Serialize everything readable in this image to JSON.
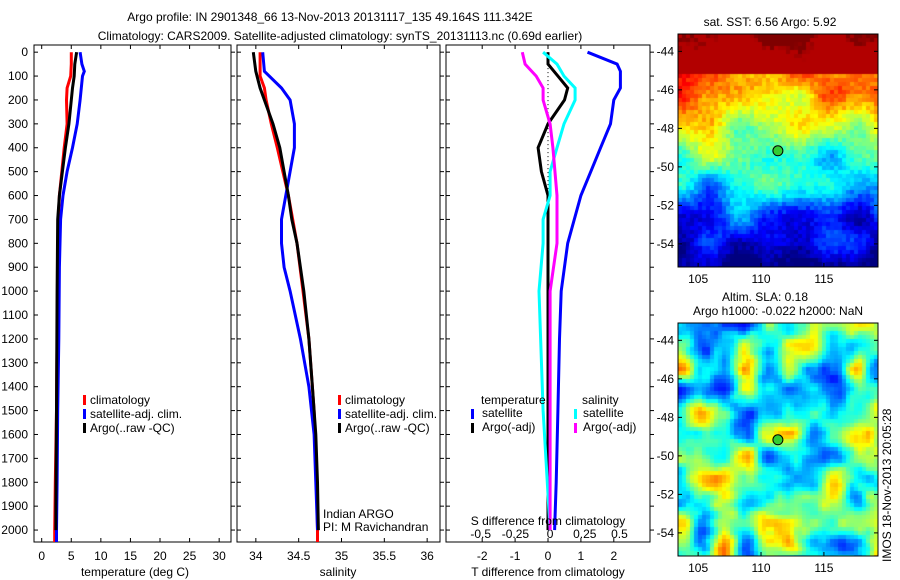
{
  "title_line1": "Argo profile: IN 2901348_66 13-Nov-2013 20131117_135 49.164S 111.342E",
  "title_line2": "Climatology: CARS2009. Satellite-adjusted climatology: synTS_20131113.nc (0.69d earlier)",
  "watermark": "IMOS 18-Nov-2013 20:05:28",
  "colors": {
    "clim": "#ff0000",
    "sat": "#0000ff",
    "argo": "#000000",
    "s_sat": "#00ffff",
    "s_argo": "#ff00ff"
  },
  "chart_data": [
    {
      "type": "line",
      "xlabel": "temperature (deg C)",
      "ylabel": "",
      "xlim": [
        -1.3,
        32
      ],
      "ylim": [
        2050,
        -30
      ],
      "xticks": [
        0,
        5,
        10,
        15,
        20,
        25,
        30
      ],
      "yticks": [
        0,
        100,
        200,
        300,
        400,
        500,
        600,
        700,
        800,
        900,
        1000,
        1100,
        1200,
        1300,
        1400,
        1500,
        1600,
        1700,
        1800,
        1900,
        2000
      ],
      "legend": [
        "climatology",
        "satellite-adj. clim.",
        "Argo(..raw -QC)"
      ],
      "series": [
        {
          "name": "climatology",
          "color": "clim",
          "points": [
            [
              0,
              5.0
            ],
            [
              50,
              5.0
            ],
            [
              100,
              4.9
            ],
            [
              150,
              4.3
            ],
            [
              200,
              4.2
            ],
            [
              300,
              4.3
            ],
            [
              400,
              3.8
            ],
            [
              500,
              3.4
            ],
            [
              600,
              3.0
            ],
            [
              700,
              2.8
            ],
            [
              900,
              2.7
            ],
            [
              1200,
              2.6
            ],
            [
              1500,
              2.5
            ],
            [
              1800,
              2.3
            ],
            [
              2000,
              2.2
            ],
            [
              2050,
              2.2
            ]
          ]
        },
        {
          "name": "satellite-adj. clim.",
          "color": "sat",
          "points": [
            [
              0,
              6.5
            ],
            [
              50,
              6.8
            ],
            [
              80,
              7.2
            ],
            [
              100,
              6.9
            ],
            [
              150,
              6.7
            ],
            [
              200,
              6.5
            ],
            [
              300,
              6.0
            ],
            [
              400,
              5.2
            ],
            [
              500,
              4.3
            ],
            [
              600,
              3.6
            ],
            [
              700,
              3.2
            ],
            [
              900,
              3.0
            ],
            [
              1200,
              2.9
            ],
            [
              1500,
              2.7
            ],
            [
              1800,
              2.6
            ],
            [
              2000,
              2.5
            ],
            [
              2050,
              2.5
            ]
          ]
        },
        {
          "name": "Argo(..raw -QC)",
          "color": "argo",
          "points": [
            [
              0,
              5.9
            ],
            [
              50,
              5.6
            ],
            [
              100,
              5.5
            ],
            [
              150,
              5.2
            ],
            [
              200,
              5.0
            ],
            [
              300,
              4.6
            ],
            [
              400,
              4.0
            ],
            [
              500,
              3.5
            ],
            [
              600,
              3.0
            ],
            [
              700,
              2.7
            ],
            [
              1000,
              2.6
            ],
            [
              1500,
              2.5
            ],
            [
              1900,
              2.4
            ],
            [
              2000,
              2.4
            ]
          ]
        }
      ]
    },
    {
      "type": "line",
      "xlabel": "salinity",
      "xlim": [
        33.78,
        36.15
      ],
      "ylim": [
        2050,
        -30
      ],
      "xticks": [
        34,
        34.5,
        35,
        35.5,
        36
      ],
      "legend": [
        "climatology",
        "satellite-adj. clim.",
        "Argo(..raw -QC)"
      ],
      "annotation": [
        "Indian ARGO",
        "PI: M Ravichandran"
      ],
      "series": [
        {
          "name": "climatology",
          "color": "clim",
          "points": [
            [
              0,
              34.05
            ],
            [
              100,
              34.05
            ],
            [
              150,
              34.1
            ],
            [
              200,
              34.12
            ],
            [
              300,
              34.18
            ],
            [
              400,
              34.25
            ],
            [
              600,
              34.38
            ],
            [
              800,
              34.48
            ],
            [
              1000,
              34.55
            ],
            [
              1200,
              34.62
            ],
            [
              1500,
              34.68
            ],
            [
              1800,
              34.71
            ],
            [
              2000,
              34.72
            ],
            [
              2050,
              34.72
            ]
          ]
        },
        {
          "name": "satellite-adj. clim.",
          "color": "sat",
          "points": [
            [
              0,
              34.08
            ],
            [
              80,
              34.1
            ],
            [
              150,
              34.3
            ],
            [
              200,
              34.4
            ],
            [
              300,
              34.45
            ],
            [
              400,
              34.45
            ],
            [
              500,
              34.4
            ],
            [
              600,
              34.35
            ],
            [
              700,
              34.3
            ],
            [
              800,
              34.3
            ],
            [
              900,
              34.33
            ],
            [
              1000,
              34.4
            ],
            [
              1200,
              34.52
            ],
            [
              1400,
              34.62
            ],
            [
              1600,
              34.68
            ],
            [
              1800,
              34.7
            ],
            [
              2000,
              34.72
            ]
          ]
        },
        {
          "name": "Argo(..raw -QC)",
          "color": "argo",
          "points": [
            [
              0,
              33.97
            ],
            [
              80,
              34.0
            ],
            [
              150,
              34.05
            ],
            [
              200,
              34.1
            ],
            [
              300,
              34.2
            ],
            [
              400,
              34.28
            ],
            [
              500,
              34.33
            ],
            [
              600,
              34.38
            ],
            [
              700,
              34.42
            ],
            [
              800,
              34.48
            ],
            [
              900,
              34.52
            ],
            [
              1000,
              34.56
            ],
            [
              1200,
              34.62
            ],
            [
              1400,
              34.66
            ],
            [
              1600,
              34.7
            ],
            [
              1800,
              34.72
            ],
            [
              2000,
              34.73
            ]
          ]
        }
      ]
    },
    {
      "type": "line",
      "xlabel": "T difference from climatology",
      "xlabel2": "S difference from climatology",
      "xlim": [
        -3.1,
        3.1
      ],
      "xlim_S": [
        -0.75,
        0.72
      ],
      "ylim": [
        2050,
        -30
      ],
      "xticks": [
        -2,
        -1,
        0,
        1,
        2
      ],
      "xticks_S": [
        -0.5,
        -0.25,
        0,
        0.25,
        0.5
      ],
      "xticklabels_S": [
        "-0.5",
        "-0.25",
        "0",
        "0.25",
        "0.5"
      ],
      "legend_T_title": "temperature",
      "legend_S_title": "salinity",
      "legend_T": [
        "satellite",
        "Argo(-adj)"
      ],
      "legend_S": [
        "satellite",
        "Argo(-adj)"
      ],
      "series": [
        {
          "name": "T satellite",
          "color": "sat",
          "scale": "T",
          "points": [
            [
              0,
              1.2
            ],
            [
              50,
              2.1
            ],
            [
              80,
              2.2
            ],
            [
              150,
              2.2
            ],
            [
              200,
              2.0
            ],
            [
              300,
              1.9
            ],
            [
              400,
              1.6
            ],
            [
              500,
              1.3
            ],
            [
              600,
              1.0
            ],
            [
              700,
              0.8
            ],
            [
              800,
              0.6
            ],
            [
              1000,
              0.4
            ],
            [
              1200,
              0.35
            ],
            [
              1500,
              0.3
            ],
            [
              1800,
              0.25
            ],
            [
              2000,
              0.2
            ]
          ]
        },
        {
          "name": "T Argo(-adj)",
          "color": "argo",
          "scale": "T",
          "points": [
            [
              0,
              0.0
            ],
            [
              50,
              0.0
            ],
            [
              100,
              0.3
            ],
            [
              150,
              0.6
            ],
            [
              200,
              0.5
            ],
            [
              300,
              0.0
            ],
            [
              400,
              -0.3
            ],
            [
              500,
              -0.2
            ],
            [
              600,
              0.0
            ],
            [
              700,
              0.0
            ],
            [
              1000,
              0.0
            ],
            [
              2000,
              0.0
            ]
          ]
        },
        {
          "name": "S satellite",
          "color": "s_sat",
          "scale": "S",
          "points": [
            [
              0,
              -0.05
            ],
            [
              50,
              0.05
            ],
            [
              100,
              0.1
            ],
            [
              150,
              0.18
            ],
            [
              200,
              0.18
            ],
            [
              300,
              0.1
            ],
            [
              400,
              0.05
            ],
            [
              500,
              0.0
            ],
            [
              600,
              0.0
            ],
            [
              700,
              -0.05
            ],
            [
              800,
              -0.05
            ],
            [
              1000,
              -0.08
            ],
            [
              1500,
              -0.05
            ],
            [
              2000,
              0.0
            ]
          ]
        },
        {
          "name": "S Argo(-adj)",
          "color": "s_argo",
          "scale": "S",
          "points": [
            [
              0,
              -0.2
            ],
            [
              50,
              -0.18
            ],
            [
              100,
              -0.1
            ],
            [
              150,
              -0.05
            ],
            [
              200,
              -0.05
            ],
            [
              300,
              0.0
            ],
            [
              400,
              0.02
            ],
            [
              600,
              0.05
            ],
            [
              800,
              0.05
            ],
            [
              1000,
              0.0
            ],
            [
              1500,
              0.0
            ],
            [
              2000,
              0.0
            ]
          ]
        }
      ]
    },
    {
      "type": "heatmap",
      "title": "sat. SST: 6.56 Argo: 5.92",
      "xlim": [
        103.4,
        119.3
      ],
      "ylim": [
        -55.2,
        -43.1
      ],
      "xticks": [
        105,
        110,
        115
      ],
      "yticks": [
        -44,
        -46,
        -48,
        -50,
        -52,
        -54
      ],
      "marker": {
        "lon": 111.342,
        "lat": -49.164
      }
    },
    {
      "type": "heatmap",
      "title": "Altim. SLA: 0.18",
      "subtitle": "Argo h1000: -0.022 h2000: NaN",
      "xlim": [
        103.4,
        119.3
      ],
      "ylim": [
        -55.2,
        -43.1
      ],
      "xticks": [
        105,
        110,
        115
      ],
      "yticks": [
        -44,
        -46,
        -48,
        -50,
        -52,
        -54
      ],
      "marker": {
        "lon": 111.342,
        "lat": -49.164
      }
    }
  ]
}
